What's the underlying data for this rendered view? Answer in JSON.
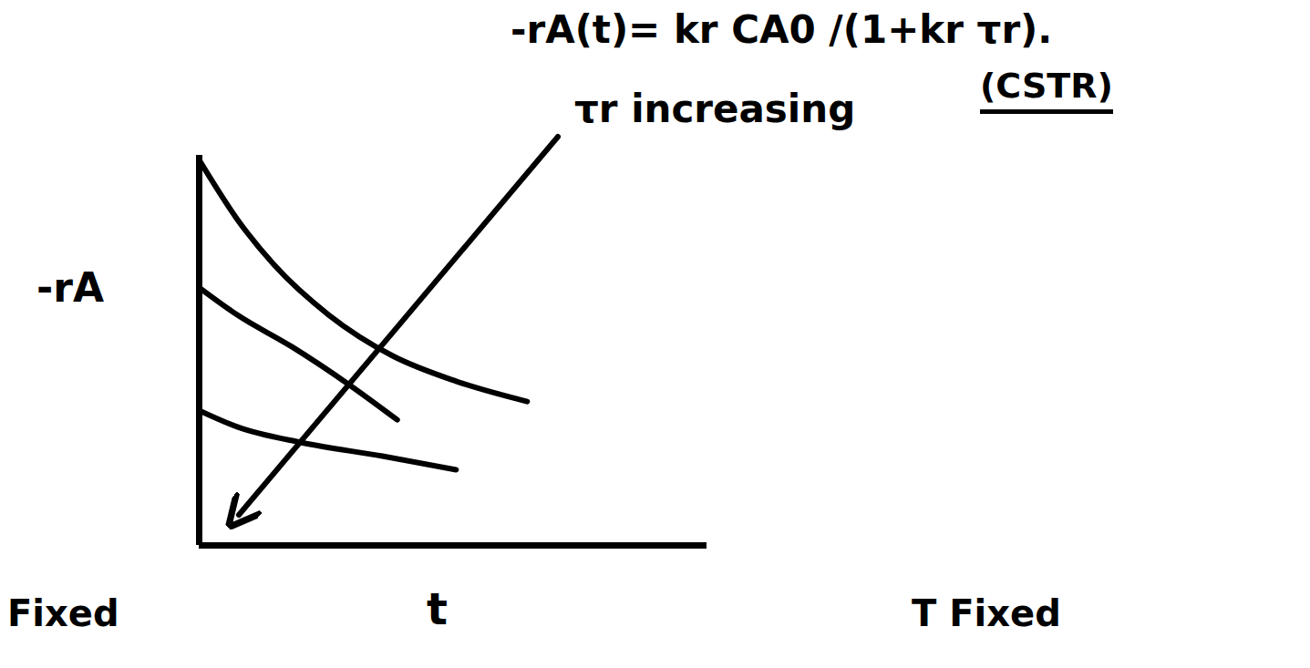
{
  "chart_data": {
    "type": "line",
    "title": "-rA(t)= kr CA0 /(1+kr τr).",
    "subtitle": "(CSTR)",
    "x_label": "t",
    "y_label": "-rA",
    "xlim": [
      0,
      10
    ],
    "ylim": [
      0,
      10
    ],
    "xticks": [],
    "yticks": [],
    "tick_labels": false,
    "grid": false,
    "series": [
      {
        "color": "#000000",
        "x": [
          0,
          0.75,
          1.47,
          2.55,
          3.81,
          5.06,
          6.46
        ],
        "values": [
          9.88,
          8.36,
          7.2,
          5.91,
          4.86,
          4.21,
          3.69
        ]
      },
      {
        "color": "#000000",
        "x": [
          0,
          0.75,
          1.83,
          2.91,
          3.9
        ],
        "values": [
          6.61,
          5.91,
          5.09,
          4.16,
          3.22
        ]
      },
      {
        "color": "#000000",
        "x": [
          0,
          0.75,
          2.0,
          3.61,
          5.06
        ],
        "values": [
          3.46,
          3.04,
          2.64,
          2.29,
          1.94
        ]
      }
    ],
    "annotations": [
      {
        "text": "τr increasing"
      },
      {
        "text": "Fixed"
      },
      {
        "text": "T Fixed"
      }
    ]
  }
}
